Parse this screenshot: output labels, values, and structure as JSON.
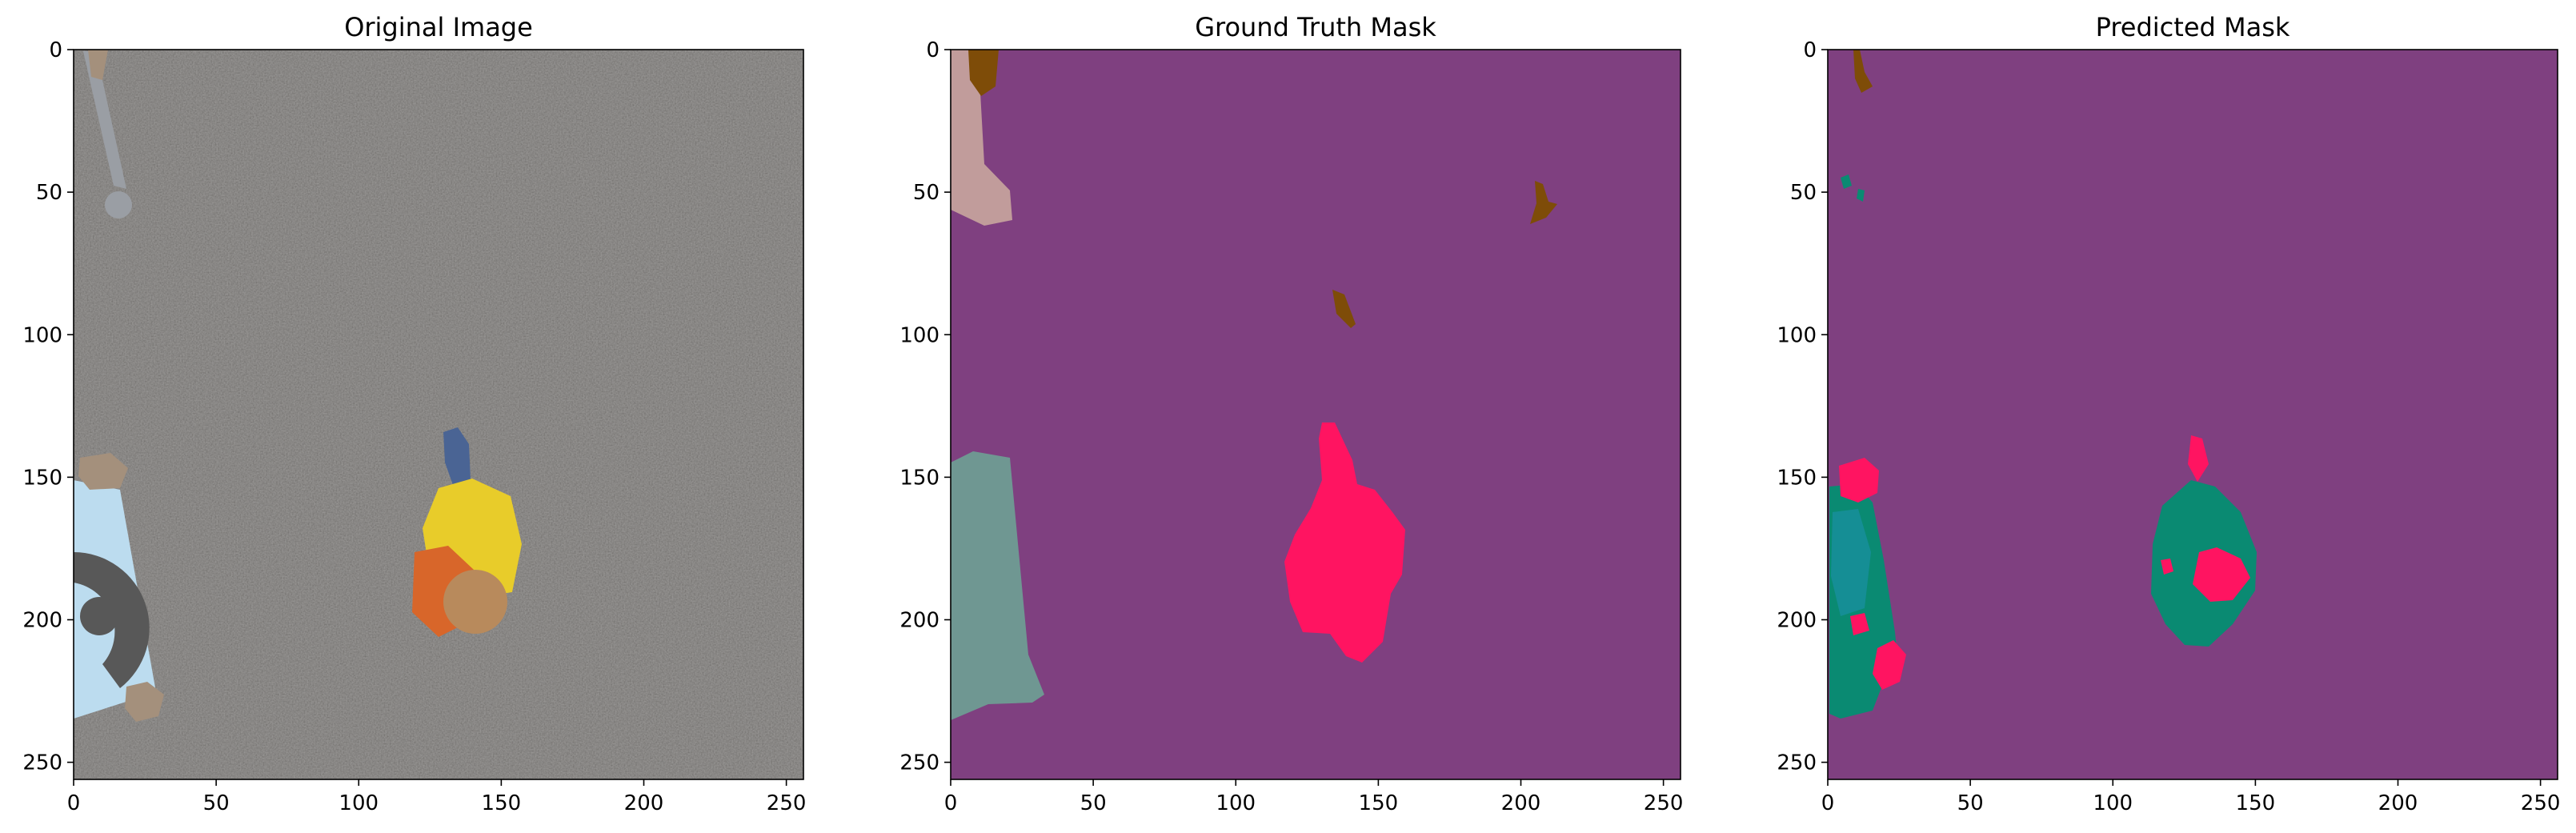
{
  "chart_data": [
    {
      "type": "heatmap",
      "title": "Original Image",
      "content": "aerial photo of asphalt with a person, blue target marker and rocks",
      "x_ticks": [
        0,
        50,
        100,
        150,
        200,
        250
      ],
      "y_ticks": [
        0,
        50,
        100,
        150,
        200,
        250
      ],
      "xlim": [
        0,
        256
      ],
      "ylim": [
        256,
        0
      ],
      "grid": false,
      "colors": {
        "background": "#6a6866",
        "marker": "#bcdcef",
        "marker_ring": "#585858",
        "rock": "#a4907c",
        "person_shirt": "#e8cc2a",
        "person_jacket": "#d8662a",
        "hair": "#b88a5c",
        "jeans": "#4a6494",
        "pole": "#9a9ea4"
      }
    },
    {
      "type": "heatmap",
      "title": "Ground Truth Mask",
      "content": "segmentation mask",
      "x_ticks": [
        0,
        50,
        100,
        150,
        200,
        250
      ],
      "y_ticks": [
        0,
        50,
        100,
        150,
        200,
        250
      ],
      "xlim": [
        0,
        256
      ],
      "ylim": [
        256,
        0
      ],
      "grid": false,
      "colors": {
        "background": "#7f4080",
        "person": "#ff1461",
        "marker": "#6f9792",
        "tan_object": "#c19c9b",
        "brown_object": "#7e4c08"
      }
    },
    {
      "type": "heatmap",
      "title": "Predicted Mask",
      "content": "segmentation mask",
      "x_ticks": [
        0,
        50,
        100,
        150,
        200,
        250
      ],
      "y_ticks": [
        0,
        50,
        100,
        150,
        200,
        250
      ],
      "xlim": [
        0,
        256
      ],
      "ylim": [
        256,
        0
      ],
      "grid": false,
      "colors": {
        "background": "#7f4080",
        "person": "#ff1461",
        "teal_class": "#0a8a72",
        "cyan_class": "#158e95",
        "brown_object": "#7e4c08"
      }
    }
  ]
}
